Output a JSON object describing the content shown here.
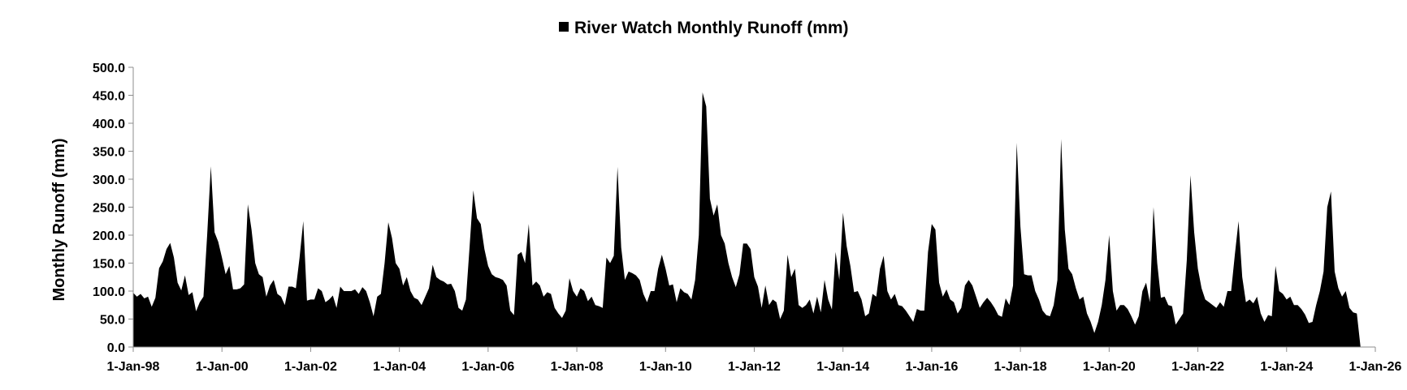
{
  "chart_data": {
    "type": "area",
    "title": "River Watch Monthly Runoff (mm)",
    "xlabel": "",
    "ylabel": "Monthly Runoff (mm)",
    "ylim": [
      0,
      500
    ],
    "y_ticks": [
      "0.0",
      "50.0",
      "100.0",
      "150.0",
      "200.0",
      "250.0",
      "300.0",
      "350.0",
      "400.0",
      "450.0",
      "500.0"
    ],
    "x_ticks": [
      "1-Jan-98",
      "1-Jan-00",
      "1-Jan-02",
      "1-Jan-04",
      "1-Jan-06",
      "1-Jan-08",
      "1-Jan-10",
      "1-Jan-12",
      "1-Jan-14",
      "1-Jan-16",
      "1-Jan-18",
      "1-Jan-20",
      "1-Jan-22",
      "1-Jan-24",
      "1-Jan-26"
    ],
    "x_range": [
      "1998-01",
      "2026-01"
    ],
    "grid": false,
    "legend_position": "top-center",
    "series": [
      {
        "name": "River Watch Monthly Runoff (mm)",
        "color": "#000000",
        "start": "1998-01",
        "values": [
          97,
          90,
          95,
          87,
          90,
          72,
          88,
          141,
          153,
          175,
          186,
          160,
          115,
          101,
          128,
          93,
          98,
          64,
          80,
          90,
          200,
          323,
          205,
          188,
          160,
          130,
          145,
          103,
          103,
          105,
          112,
          255,
          210,
          150,
          130,
          125,
          90,
          110,
          120,
          95,
          90,
          75,
          108,
          108,
          105,
          160,
          225,
          83,
          85,
          85,
          105,
          100,
          80,
          85,
          92,
          70,
          108,
          100,
          100,
          100,
          103,
          95,
          107,
          100,
          80,
          55,
          90,
          95,
          150,
          223,
          195,
          150,
          140,
          110,
          125,
          100,
          88,
          85,
          75,
          90,
          105,
          147,
          125,
          120,
          117,
          112,
          113,
          100,
          70,
          65,
          85,
          180,
          280,
          230,
          220,
          175,
          145,
          130,
          125,
          123,
          120,
          110,
          65,
          57,
          165,
          170,
          150,
          220,
          110,
          117,
          110,
          90,
          98,
          95,
          70,
          60,
          52,
          65,
          123,
          100,
          90,
          105,
          100,
          82,
          90,
          75,
          73,
          70,
          160,
          150,
          163,
          322,
          178,
          120,
          135,
          132,
          128,
          120,
          95,
          80,
          100,
          100,
          140,
          165,
          140,
          110,
          112,
          80,
          105,
          98,
          95,
          85,
          120,
          200,
          455,
          430,
          265,
          235,
          255,
          200,
          185,
          150,
          125,
          107,
          130,
          185,
          185,
          175,
          125,
          108,
          70,
          110,
          75,
          85,
          80,
          50,
          65,
          165,
          125,
          140,
          75,
          70,
          75,
          85,
          60,
          90,
          62,
          120,
          85,
          67,
          170,
          120,
          240,
          180,
          145,
          98,
          100,
          85,
          55,
          60,
          95,
          90,
          140,
          163,
          100,
          85,
          95,
          75,
          73,
          65,
          55,
          45,
          68,
          65,
          65,
          170,
          220,
          210,
          115,
          90,
          103,
          85,
          80,
          60,
          70,
          110,
          120,
          110,
          90,
          70,
          80,
          88,
          80,
          70,
          57,
          54,
          87,
          75,
          110,
          365,
          215,
          130,
          128,
          128,
          100,
          85,
          65,
          57,
          55,
          75,
          120,
          372,
          210,
          140,
          130,
          105,
          85,
          90,
          60,
          45,
          25,
          45,
          75,
          120,
          200,
          100,
          65,
          75,
          75,
          68,
          55,
          40,
          55,
          100,
          115,
          80,
          250,
          150,
          88,
          90,
          75,
          73,
          40,
          50,
          60,
          155,
          307,
          205,
          140,
          105,
          85,
          80,
          75,
          70,
          80,
          72,
          100,
          100,
          165,
          225,
          125,
          80,
          85,
          78,
          90,
          60,
          45,
          57,
          55,
          145,
          100,
          95,
          85,
          90,
          75,
          75,
          68,
          58,
          43,
          45,
          75,
          100,
          135,
          250,
          278,
          135,
          105,
          90,
          100,
          70,
          62,
          60,
          0
        ]
      }
    ]
  }
}
